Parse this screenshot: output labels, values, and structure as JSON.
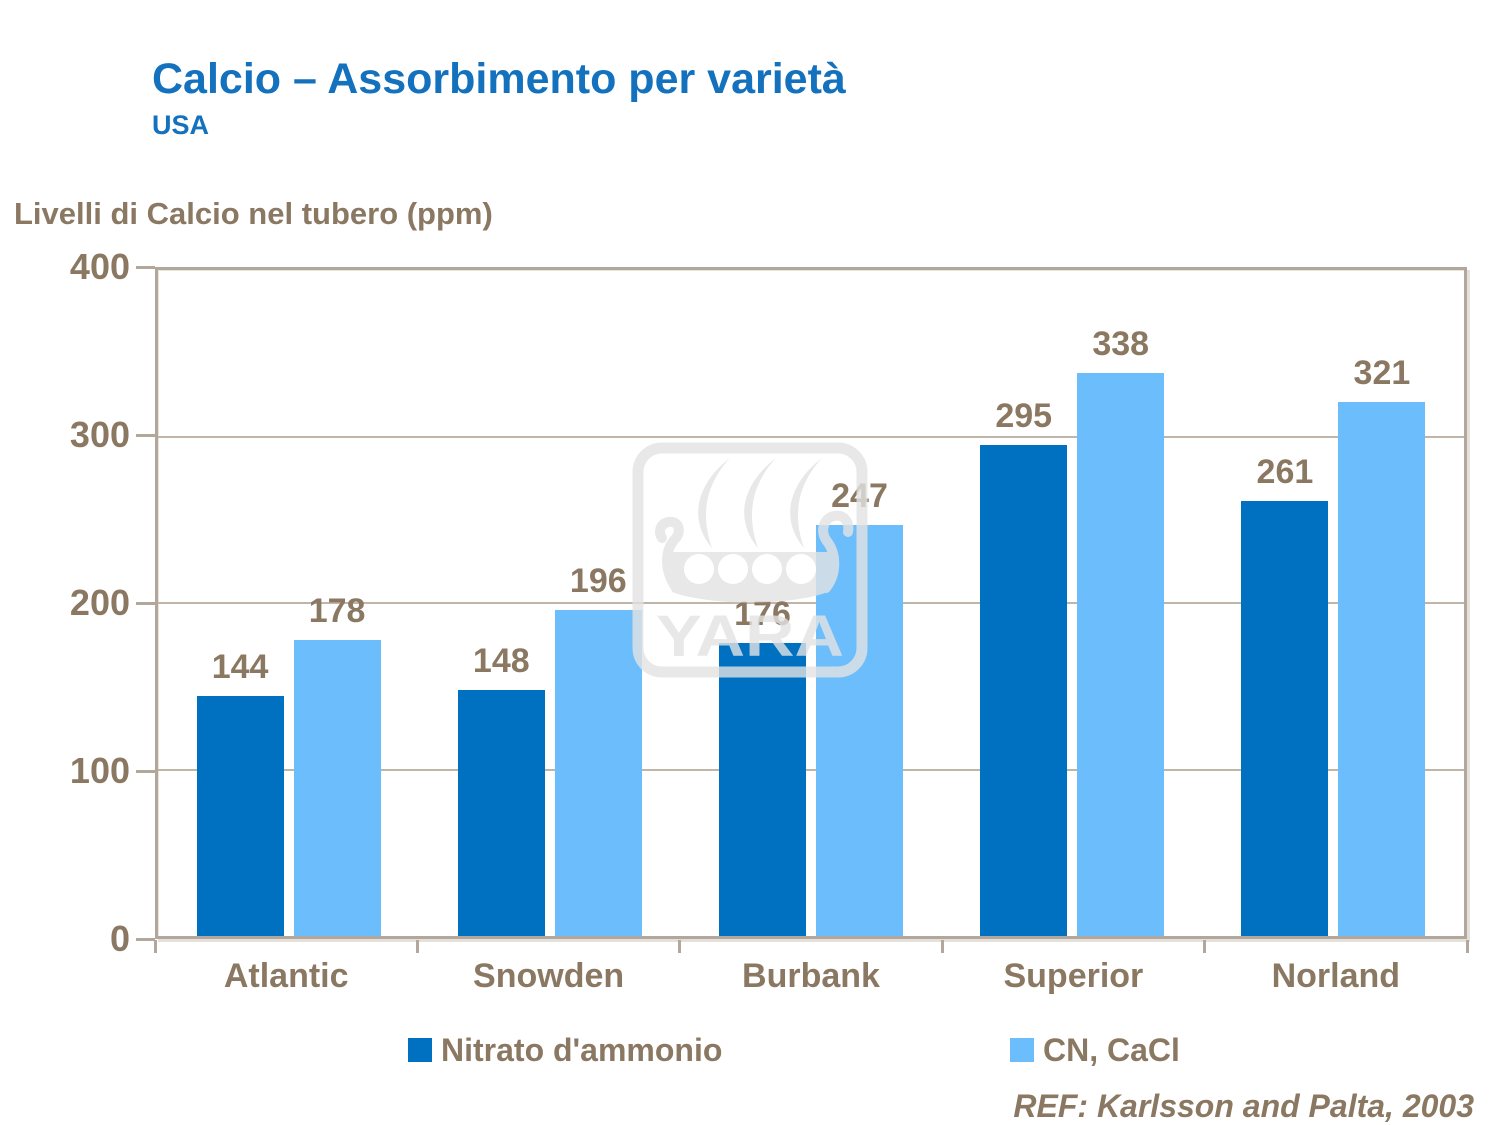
{
  "slide": {
    "title": "Calcio – Assorbimento per varietà",
    "subtitle": "USA",
    "axis_title": "Livelli di Calcio nel tubero (ppm)",
    "reference": "REF: Karlsson and Palta, 2003",
    "watermark_text": "YARA"
  },
  "colors": {
    "title_blue": "#1371BE",
    "label_taupe": "#8A7862",
    "frame": "#B2A79A",
    "gridline": "#BFB5A9",
    "watermark": "#E3E3E3",
    "background": "#FFFFFF",
    "series_dark": "#0070C0",
    "series_light": "#6CBDFC"
  },
  "chart_data": {
    "type": "bar",
    "title": "Calcio – Assorbimento per varietà (USA)",
    "xlabel": "",
    "ylabel": "Livelli di Calcio nel tubero (ppm)",
    "categories": [
      "Atlantic",
      "Snowden",
      "Burbank",
      "Superior",
      "Norland"
    ],
    "series": [
      {
        "name": "Nitrato d'ammonio",
        "color": "#0070C0",
        "values": [
          144,
          148,
          176,
          295,
          261
        ]
      },
      {
        "name": "CN, CaCl",
        "color": "#6CBDFC",
        "values": [
          178,
          196,
          247,
          338,
          321
        ]
      }
    ],
    "ylim": [
      0,
      400
    ],
    "yticks": [
      0,
      100,
      200,
      300,
      400
    ],
    "grid": true,
    "data_labels": true,
    "legend_position": "bottom"
  }
}
